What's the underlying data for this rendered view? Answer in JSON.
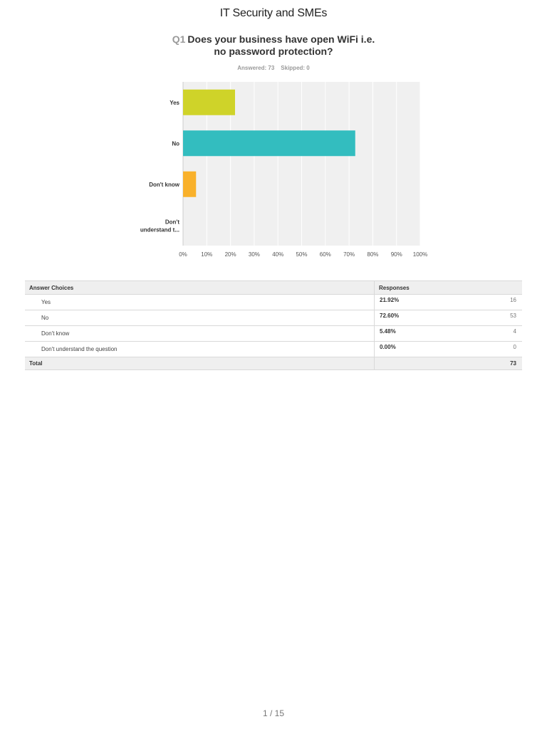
{
  "document": {
    "title": "IT Security and SMEs",
    "page_number": "1 / 15"
  },
  "question": {
    "number": "Q1",
    "text_line1": "Does your business have open WiFi i.e.",
    "text_line2": "no password protection?",
    "answered": "Answered: 73",
    "skipped": "Skipped: 0"
  },
  "chart_data": {
    "type": "bar",
    "orientation": "horizontal",
    "categories": [
      "Yes",
      "No",
      "Don't know",
      "Don't understand t..."
    ],
    "values": [
      21.92,
      72.6,
      5.48,
      0
    ],
    "colors": [
      "#cfd329",
      "#33bdbf",
      "#f9b12b",
      "#a6a6a6"
    ],
    "x_ticks": [
      "0%",
      "10%",
      "20%",
      "30%",
      "40%",
      "50%",
      "60%",
      "70%",
      "80%",
      "90%",
      "100%"
    ],
    "xlim": [
      0,
      100
    ],
    "grid": true,
    "background": "#f0f0f0"
  },
  "table": {
    "headers": {
      "choices": "Answer Choices",
      "responses": "Responses"
    },
    "rows": [
      {
        "choice": "Yes",
        "percent": "21.92%",
        "count": "16"
      },
      {
        "choice": "No",
        "percent": "72.60%",
        "count": "53"
      },
      {
        "choice": "Don't know",
        "percent": "5.48%",
        "count": "4"
      },
      {
        "choice": "Don't understand the question",
        "percent": "0.00%",
        "count": "0"
      }
    ],
    "total_label": "Total",
    "total_count": "73"
  }
}
